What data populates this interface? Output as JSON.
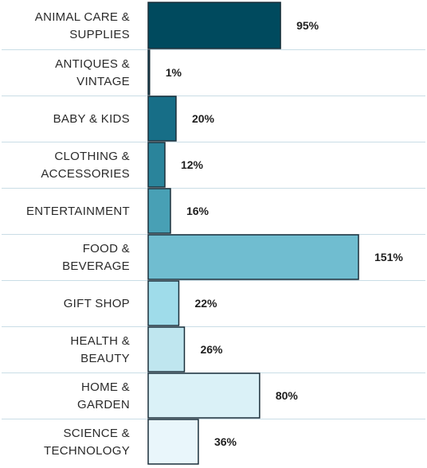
{
  "chart_data": {
    "type": "bar",
    "orientation": "horizontal",
    "categories": [
      [
        "ANIMAL CARE &",
        "SUPPLIES"
      ],
      [
        "ANTIQUES &",
        "VINTAGE"
      ],
      [
        "BABY & KIDS"
      ],
      [
        "CLOTHING &",
        "ACCESSORIES"
      ],
      [
        "ENTERTAINMENT"
      ],
      [
        "FOOD &",
        "BEVERAGE"
      ],
      [
        "GIFT SHOP"
      ],
      [
        "HEALTH &",
        "BEAUTY"
      ],
      [
        "HOME &",
        "GARDEN"
      ],
      [
        "SCIENCE &",
        "TECHNOLOGY"
      ]
    ],
    "values": [
      95,
      1,
      20,
      12,
      16,
      151,
      22,
      26,
      80,
      36
    ],
    "value_labels": [
      "95%",
      "1%",
      "20%",
      "12%",
      "16%",
      "151%",
      "22%",
      "26%",
      "80%",
      "36%"
    ],
    "bar_colors": [
      "#004a5e",
      "#0b5d73",
      "#176e87",
      "#2a849b",
      "#48a0b5",
      "#70bdd0",
      "#9fdcea",
      "#bfe6ef",
      "#daf1f7",
      "#e9f6fb"
    ],
    "title": "",
    "xlabel": "",
    "ylabel": "",
    "xlim": [
      0,
      151
    ],
    "grid": false,
    "legend": "none"
  }
}
